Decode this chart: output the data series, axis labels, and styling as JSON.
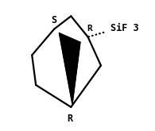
{
  "background_color": "#ffffff",
  "figsize": [
    1.95,
    1.65
  ],
  "dpi": 100,
  "lw": 1.6,
  "bond_color": "#000000",
  "label_S": "S",
  "label_R_top": "R",
  "label_R_bot": "R",
  "label_SiF3": "SiF 3",
  "font_family": "monospace",
  "font_size": 8.5,
  "font_color": "#000000",
  "xlim": [
    0,
    1
  ],
  "ylim": [
    0,
    1
  ],
  "C1": [
    0.32,
    0.78
  ],
  "C2": [
    0.58,
    0.72
  ],
  "C3": [
    0.68,
    0.5
  ],
  "C4": [
    0.45,
    0.18
  ],
  "C5": [
    0.18,
    0.35
  ],
  "C6": [
    0.15,
    0.58
  ],
  "C7": [
    0.45,
    0.88
  ],
  "SiF3": [
    0.88,
    0.8
  ]
}
